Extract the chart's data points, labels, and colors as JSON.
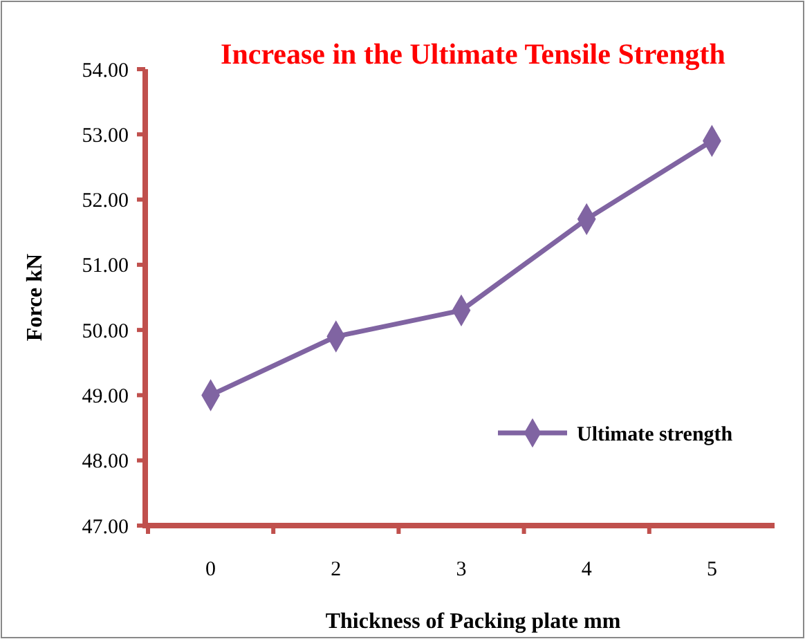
{
  "chart_data": {
    "type": "line",
    "title": "Increase in the Ultimate Tensile Strength",
    "xlabel": "Thickness of Packing plate  mm",
    "ylabel": "Force  kN",
    "categories": [
      "0",
      "2",
      "3",
      "4",
      "5"
    ],
    "series": [
      {
        "name": "Ultimate strength",
        "color": "#8064a2",
        "values": [
          49.0,
          49.9,
          50.3,
          51.7,
          52.9
        ]
      }
    ],
    "ylim": [
      47,
      54
    ],
    "yticks": [
      {
        "value": 47,
        "label": "47.00"
      },
      {
        "value": 48,
        "label": "48.00"
      },
      {
        "value": 49,
        "label": "49.00"
      },
      {
        "value": 50,
        "label": "50.00"
      },
      {
        "value": 51,
        "label": "51.00"
      },
      {
        "value": 52,
        "label": "52.00"
      },
      {
        "value": 53,
        "label": "53.00"
      },
      {
        "value": 54,
        "label": "54.00"
      }
    ],
    "grid": false,
    "legend": "right",
    "marker": "diamond",
    "line_style": "solid"
  }
}
